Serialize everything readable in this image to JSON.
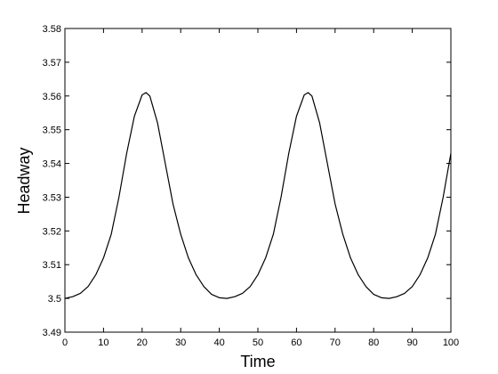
{
  "chart_data": {
    "type": "line",
    "xlabel": "Time",
    "ylabel": "Headway",
    "x": [
      0,
      2,
      4,
      6,
      8,
      10,
      12,
      14,
      16,
      18,
      20,
      21,
      22,
      24,
      26,
      28,
      30,
      32,
      34,
      36,
      38,
      40,
      42,
      44,
      46,
      48,
      50,
      52,
      54,
      56,
      58,
      60,
      62,
      63,
      64,
      66,
      68,
      70,
      72,
      74,
      76,
      78,
      80,
      82,
      84,
      86,
      88,
      90,
      92,
      94,
      96,
      98,
      100
    ],
    "series": [
      {
        "color": "#000000",
        "values": [
          3.5,
          3.5005,
          3.5015,
          3.5035,
          3.507,
          3.512,
          3.519,
          3.53,
          3.543,
          3.554,
          3.5603,
          3.561,
          3.56,
          3.552,
          3.54,
          3.528,
          3.519,
          3.512,
          3.507,
          3.5035,
          3.5012,
          3.5002,
          3.5,
          3.5005,
          3.5015,
          3.5035,
          3.507,
          3.512,
          3.519,
          3.53,
          3.543,
          3.554,
          3.5603,
          3.561,
          3.56,
          3.552,
          3.54,
          3.528,
          3.519,
          3.512,
          3.507,
          3.5035,
          3.5012,
          3.5002,
          3.5,
          3.5005,
          3.5015,
          3.5035,
          3.507,
          3.512,
          3.519,
          3.53,
          3.543
        ]
      }
    ],
    "xlim": [
      0,
      100
    ],
    "xticks": [
      0,
      10,
      20,
      30,
      40,
      50,
      60,
      70,
      80,
      90,
      100
    ],
    "ylim": [
      3.49,
      3.58
    ],
    "yticks": [
      3.49,
      3.5,
      3.51,
      3.52,
      3.53,
      3.54,
      3.55,
      3.56,
      3.57,
      3.58
    ],
    "grid": false
  }
}
